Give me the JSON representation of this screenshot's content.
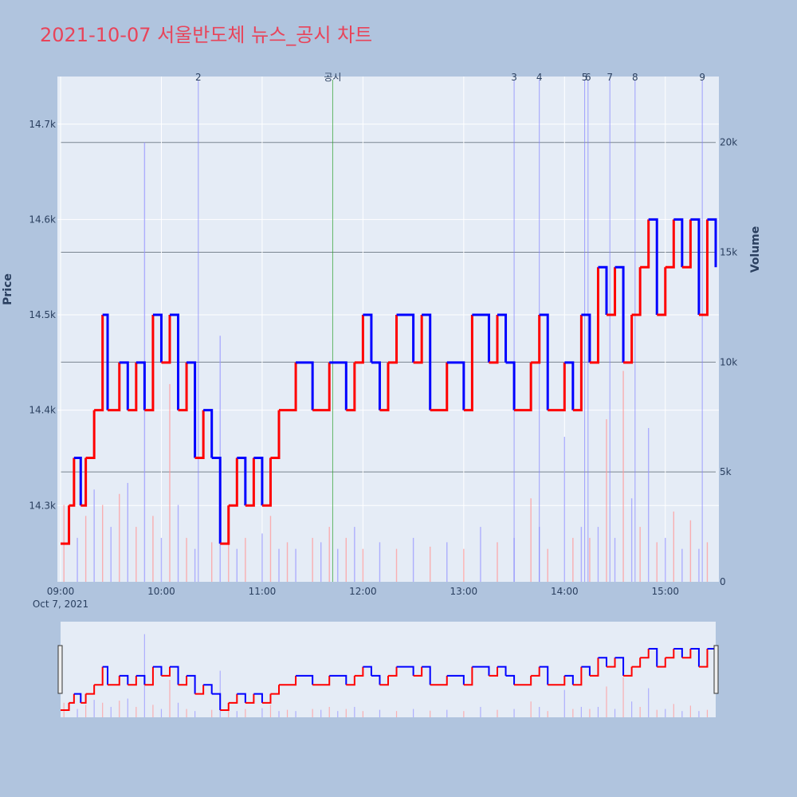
{
  "chart_data": {
    "type": "line",
    "title": "2021-10-07 서울반도체 뉴스_공시 차트",
    "ylabel": "Price",
    "y2label": "Volume",
    "ylim": [
      14220,
      14750
    ],
    "y2lim": [
      0,
      23000
    ],
    "y_ticks": [
      14300,
      14400,
      14500,
      14600,
      14700
    ],
    "y_tick_labels": [
      "14.3k",
      "14.4k",
      "14.5k",
      "14.6k",
      "14.7k"
    ],
    "y2_ticks": [
      0,
      5000,
      10000,
      15000,
      20000
    ],
    "y2_tick_labels": [
      "0",
      "5k",
      "10k",
      "15k",
      "20k"
    ],
    "x_ticks": [
      "09:00",
      "10:00",
      "11:00",
      "12:00",
      "13:00",
      "14:00",
      "15:00"
    ],
    "x_date_label": "Oct 7, 2021",
    "x_range": [
      "09:00",
      "15:30"
    ],
    "colors": {
      "up": "#ff0000",
      "down": "#0000ff",
      "disclosure": "#2ca02c",
      "news": "#8080ff",
      "title": "#e8445a"
    },
    "price_path": [
      [
        "09:00",
        14260
      ],
      [
        "09:05",
        14300
      ],
      [
        "09:08",
        14350
      ],
      [
        "09:12",
        14300
      ],
      [
        "09:15",
        14350
      ],
      [
        "09:20",
        14400
      ],
      [
        "09:25",
        14500
      ],
      [
        "09:28",
        14400
      ],
      [
        "09:35",
        14450
      ],
      [
        "09:40",
        14400
      ],
      [
        "09:45",
        14450
      ],
      [
        "09:50",
        14400
      ],
      [
        "09:55",
        14500
      ],
      [
        "10:00",
        14450
      ],
      [
        "10:05",
        14500
      ],
      [
        "10:10",
        14400
      ],
      [
        "10:15",
        14450
      ],
      [
        "10:20",
        14350
      ],
      [
        "10:25",
        14400
      ],
      [
        "10:30",
        14350
      ],
      [
        "10:35",
        14260
      ],
      [
        "10:40",
        14300
      ],
      [
        "10:45",
        14350
      ],
      [
        "10:50",
        14300
      ],
      [
        "10:55",
        14350
      ],
      [
        "11:00",
        14300
      ],
      [
        "11:05",
        14350
      ],
      [
        "11:10",
        14400
      ],
      [
        "11:20",
        14450
      ],
      [
        "11:30",
        14400
      ],
      [
        "11:40",
        14450
      ],
      [
        "11:50",
        14400
      ],
      [
        "11:55",
        14450
      ],
      [
        "12:00",
        14500
      ],
      [
        "12:05",
        14450
      ],
      [
        "12:10",
        14400
      ],
      [
        "12:15",
        14450
      ],
      [
        "12:20",
        14500
      ],
      [
        "12:30",
        14450
      ],
      [
        "12:35",
        14500
      ],
      [
        "12:40",
        14400
      ],
      [
        "12:50",
        14450
      ],
      [
        "13:00",
        14400
      ],
      [
        "13:05",
        14500
      ],
      [
        "13:15",
        14450
      ],
      [
        "13:20",
        14500
      ],
      [
        "13:25",
        14450
      ],
      [
        "13:30",
        14400
      ],
      [
        "13:40",
        14450
      ],
      [
        "13:45",
        14500
      ],
      [
        "13:50",
        14400
      ],
      [
        "14:00",
        14450
      ],
      [
        "14:05",
        14400
      ],
      [
        "14:10",
        14500
      ],
      [
        "14:15",
        14450
      ],
      [
        "14:20",
        14550
      ],
      [
        "14:25",
        14500
      ],
      [
        "14:30",
        14550
      ],
      [
        "14:35",
        14450
      ],
      [
        "14:40",
        14500
      ],
      [
        "14:45",
        14550
      ],
      [
        "14:50",
        14600
      ],
      [
        "14:55",
        14500
      ],
      [
        "15:00",
        14550
      ],
      [
        "15:05",
        14600
      ],
      [
        "15:10",
        14550
      ],
      [
        "15:15",
        14600
      ],
      [
        "15:20",
        14500
      ],
      [
        "15:25",
        14600
      ],
      [
        "15:30",
        14550
      ]
    ],
    "volume_spikes": [
      [
        "09:02",
        3500
      ],
      [
        "09:10",
        2000
      ],
      [
        "09:15",
        3000
      ],
      [
        "09:20",
        4200
      ],
      [
        "09:25",
        3500
      ],
      [
        "09:30",
        2500
      ],
      [
        "09:35",
        4000
      ],
      [
        "09:40",
        4500
      ],
      [
        "09:45",
        2500
      ],
      [
        "09:50",
        20000
      ],
      [
        "09:55",
        3000
      ],
      [
        "10:00",
        2000
      ],
      [
        "10:05",
        9000
      ],
      [
        "10:10",
        3500
      ],
      [
        "10:15",
        2000
      ],
      [
        "10:20",
        1500
      ],
      [
        "10:30",
        1800
      ],
      [
        "10:35",
        11200
      ],
      [
        "10:40",
        1800
      ],
      [
        "10:45",
        1500
      ],
      [
        "10:50",
        2000
      ],
      [
        "11:00",
        2200
      ],
      [
        "11:05",
        3000
      ],
      [
        "11:10",
        1500
      ],
      [
        "11:15",
        1800
      ],
      [
        "11:20",
        1500
      ],
      [
        "11:30",
        2000
      ],
      [
        "11:35",
        1800
      ],
      [
        "11:40",
        2500
      ],
      [
        "11:45",
        1500
      ],
      [
        "11:50",
        2000
      ],
      [
        "11:55",
        2500
      ],
      [
        "12:00",
        1500
      ],
      [
        "12:10",
        1800
      ],
      [
        "12:20",
        1500
      ],
      [
        "12:30",
        2000
      ],
      [
        "12:40",
        1600
      ],
      [
        "12:50",
        1800
      ],
      [
        "13:00",
        1500
      ],
      [
        "13:10",
        2500
      ],
      [
        "13:20",
        1800
      ],
      [
        "13:30",
        2000
      ],
      [
        "13:40",
        3800
      ],
      [
        "13:45",
        2500
      ],
      [
        "13:50",
        1500
      ],
      [
        "14:00",
        6600
      ],
      [
        "14:05",
        2000
      ],
      [
        "14:10",
        2500
      ],
      [
        "14:15",
        2000
      ],
      [
        "14:20",
        2500
      ],
      [
        "14:25",
        7400
      ],
      [
        "14:30",
        2000
      ],
      [
        "14:35",
        9600
      ],
      [
        "14:40",
        3800
      ],
      [
        "14:45",
        2500
      ],
      [
        "14:50",
        7000
      ],
      [
        "14:55",
        1800
      ],
      [
        "15:00",
        2000
      ],
      [
        "15:05",
        3200
      ],
      [
        "15:10",
        1500
      ],
      [
        "15:15",
        2800
      ],
      [
        "15:20",
        1500
      ],
      [
        "15:25",
        1800
      ]
    ],
    "annotations": [
      {
        "label": "2",
        "time": "10:22"
      },
      {
        "label": "공시",
        "time": "11:42",
        "kind": "disclosure"
      },
      {
        "label": "3",
        "time": "13:30"
      },
      {
        "label": "4",
        "time": "13:45"
      },
      {
        "label": "5",
        "time": "14:12"
      },
      {
        "label": "6",
        "time": "14:14"
      },
      {
        "label": "7",
        "time": "14:27"
      },
      {
        "label": "8",
        "time": "14:42"
      },
      {
        "label": "9",
        "time": "15:22"
      }
    ],
    "grid": true,
    "legend": "none",
    "rangeslider": true
  }
}
